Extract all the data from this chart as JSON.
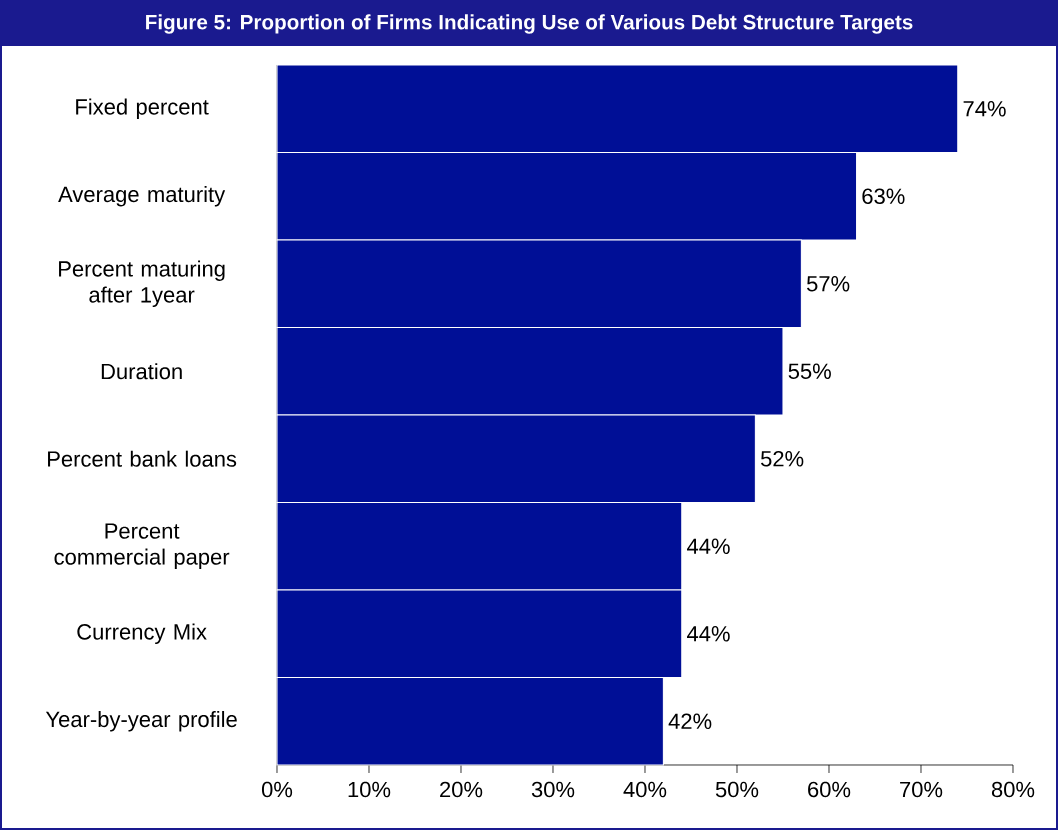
{
  "chart_data": {
    "type": "bar",
    "orientation": "horizontal",
    "title": "Figure 5: Proportion of Firms Indicating Use of Various Debt Structure Targets",
    "categories": [
      "Fixed percent",
      "Average maturity",
      "Percent maturing after 1year",
      "Duration",
      "Percent bank loans",
      "Percent commercial paper",
      "Currency Mix",
      "Year-by-year profile"
    ],
    "values": [
      74,
      63,
      57,
      55,
      52,
      44,
      44,
      42
    ],
    "value_labels": [
      "74%",
      "63%",
      "57%",
      "55%",
      "52%",
      "44%",
      "44%",
      "42%"
    ],
    "color": "#000f96",
    "xlim": [
      0,
      80
    ],
    "xticks": [
      {
        "value": 0,
        "label": "0%"
      },
      {
        "value": 10,
        "label": "10%"
      },
      {
        "value": 20,
        "label": "20%"
      },
      {
        "value": 30,
        "label": "30%"
      },
      {
        "value": 40,
        "label": "40%"
      },
      {
        "value": 50,
        "label": "50%"
      },
      {
        "value": 60,
        "label": "60%"
      },
      {
        "value": 70,
        "label": "70%"
      },
      {
        "value": 80,
        "label": "80%"
      }
    ]
  }
}
